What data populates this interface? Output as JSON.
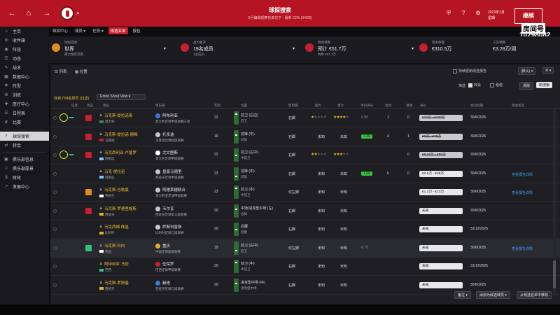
{
  "topbar": {
    "title": "球探搜索",
    "subtitle": "5月编辑观察名单位于 · 最新 22% (0/428)",
    "date_line1": "2023年1月",
    "date_line2": "星期",
    "continue_label": "继续",
    "badge_tag": "房间号",
    "badge_num": "10298082",
    "colors": {
      "bar": "#b51522"
    }
  },
  "sidebar": {
    "items": [
      {
        "icon": "⌂",
        "label": "主页"
      },
      {
        "icon": "✉",
        "label": "收件箱"
      },
      {
        "icon": "◉",
        "label": "阵容"
      },
      {
        "icon": "☰",
        "label": "动态"
      },
      {
        "icon": "✎",
        "label": "战术"
      },
      {
        "icon": "▦",
        "label": "数据中心"
      },
      {
        "icon": "⚑",
        "label": "阵型"
      },
      {
        "icon": "⚙",
        "label": "训练"
      },
      {
        "icon": "✚",
        "label": "医疗中心"
      },
      {
        "icon": "☷",
        "label": "日程表"
      },
      {
        "icon": "♛",
        "label": "比赛"
      },
      {
        "icon": "⌕",
        "label": "球探搜索",
        "active": true
      },
      {
        "icon": "⇄",
        "label": "转会"
      },
      {
        "icon": "▣",
        "label": "俱乐部信息"
      },
      {
        "icon": "⚐",
        "label": "俱乐部愿景"
      },
      {
        "icon": "$",
        "label": "财政"
      },
      {
        "icon": "↗",
        "label": "发展中心"
      }
    ]
  },
  "tabs": [
    {
      "label": "球探中心"
    },
    {
      "label": "球员 ▾"
    },
    {
      "label": "任务 ▾"
    },
    {
      "label": "候选名单",
      "active": true
    },
    {
      "label": "报告"
    }
  ],
  "summary": [
    {
      "label": "球探范围",
      "value": "世界",
      "sub": "最大搜索范围",
      "color": "#e08a20"
    },
    {
      "label": "战力要求",
      "value": "19名成员",
      "sub": "1名成员",
      "color": "#c8202e"
    },
    {
      "label": "转会预算",
      "value": "预计 €51.7万",
      "sub": "剩余 €51.7万",
      "color": "#c8202e"
    },
    {
      "label": "转会余额",
      "value": "€310.5万",
      "sub": "",
      "color": "#c8202e"
    },
    {
      "label": "工资预算",
      "value": "€3.28万/周",
      "sub": "",
      "color": "#c8202e"
    }
  ],
  "panel": {
    "view_list": "列表",
    "view_pos": "位置",
    "keep_report": "持续更新候选报告",
    "default_dd": "(默认) ▾",
    "filter_label": "筛选",
    "chk_1": "转会",
    "chk_2": "租借",
    "clear_btn": "清除",
    "new_btn": "新搜索",
    "found_text": "找到了84名球员 (过滤)",
    "scout_view": "Emon Scout View ▾"
  },
  "columns": {
    "info": "信息",
    "status": "状态",
    "name": "球员",
    "club": "俱乐部",
    "age": "年龄",
    "position": "位置",
    "foot": "惯用脚",
    "ability": "能力",
    "potential": "潜力",
    "rating": "平均评分",
    "apps": "出场",
    "goals": "进球",
    "assists": "助攻",
    "value": "身价",
    "contract": "合同到期",
    "agent": "转会状态"
  },
  "rows": [
    {
      "ring": true,
      "status_color": "#c8202e",
      "name": "马克斯·提拉诺奥",
      "nat": "意大利",
      "flag": "#2e8b57",
      "club": "阿布利亚",
      "league": "意大利足球甲级联赛三组",
      "club_color": "#3a7bd5",
      "age": "22",
      "pos": "前卫 (右边)",
      "pos_sub": "后卫",
      "foot": "右脚",
      "ability": 1,
      "potential": 4,
      "rating": "6.95",
      "rating_green": false,
      "apps": "1",
      "goals": "0",
      "value": "€10万 - €120万",
      "strike": true,
      "contract": "30/6/2026",
      "link": ""
    },
    {
      "ring": false,
      "status_color": "#c8202e",
      "name": "马克斯·提拉诺·德梅",
      "nat": "马耳他",
      "flag": "#c8202e",
      "club": "托多迪",
      "league": "马耳他足球超级联赛",
      "club_color": "#c8c8cc",
      "age": "19",
      "pos": "前锋 (中)",
      "pos_sub": "前锋",
      "foot": "右脚",
      "ability": 0,
      "potential": 0,
      "rating": "7.30",
      "rating_green": true,
      "apps": "4",
      "goals": "1",
      "value": "€0万 - €30万",
      "strike": true,
      "contract": "30/6/2026",
      "link": ""
    },
    {
      "ring": true,
      "status_color": "#c8202e",
      "name": "马克西利亚·卢塞罗",
      "nat": "阿根廷",
      "flag": "#7ec8ff",
      "club": "尤文图斯",
      "league": "意大利足球甲级联赛",
      "club_color": "#ffffff",
      "age": "22",
      "pos": "前卫 (右中)",
      "pos_sub": "中前卫",
      "foot": "右脚",
      "ability": 2,
      "potential": 3,
      "rating": "",
      "rating_green": false,
      "apps": "",
      "goals": "0",
      "value": "€8.45万 - €85万",
      "strike": true,
      "contract": "30/6/2026",
      "link": ""
    },
    {
      "ring": false,
      "status_color": "",
      "name": "马克·提拉诺",
      "nat": "阿根廷",
      "flag": "#7ec8ff",
      "club": "皇家马德里",
      "league": "西班牙足球甲级联赛",
      "club_color": "#c8c8cc",
      "age": "23",
      "pos": "前锋 (中)",
      "pos_sub": "前锋",
      "foot": "右脚",
      "ability": 0,
      "potential": 0,
      "rating": "7.20",
      "rating_green": true,
      "apps": "6",
      "goals": "0",
      "value": "€2.6万 - €28万",
      "strike": false,
      "contract": "30/6/2025",
      "link": "查看报告详情"
    },
    {
      "ring": false,
      "status_color": "#e08a20",
      "name": "马克斯·巴勒莫",
      "nat": "英格兰",
      "flag": "#ffffff",
      "club": "阿德莱德联合",
      "league": "澳大利亚足球甲级联赛",
      "club_color": "#c8c8cc",
      "age": "23",
      "pos": "前卫 (中)",
      "pos_sub": "中前卫",
      "foot": "仅左脚",
      "ability": 0,
      "potential": 0,
      "rating": "",
      "rating_green": false,
      "apps": "",
      "goals": "",
      "value": "€1.2万 - €13万",
      "strike": false,
      "contract": "30/6/2025",
      "link": "查看报告详情"
    },
    {
      "ring": false,
      "status_color": "#c8202e",
      "name": "马克斯·罗德里格斯",
      "nat": "西班牙",
      "flag": "#e0b020",
      "club": "韦尔瓦",
      "league": "西班牙足球第三级联赛",
      "club_color": "#c8c8cc",
      "age": "20",
      "pos": "中场/进攻型中场 (左)",
      "pos_sub": "边锋",
      "foot": "右脚",
      "ability": 0,
      "potential": 0,
      "rating": "",
      "rating_green": false,
      "apps": "",
      "goals": "",
      "value": "未知",
      "strike": false,
      "contract": "30/6/2025",
      "link": ""
    },
    {
      "ring": false,
      "status_color": "",
      "name": "马克西姆·佩洛",
      "nat": "比利时",
      "flag": "#e0b020",
      "club": "萨斯科普斯",
      "league": "比利时足球乙级联赛",
      "club_color": "#c8c8cc",
      "age": "20",
      "pos": "后腰",
      "pos_sub": "后腰",
      "foot": "右脚",
      "ability": 0,
      "potential": 0,
      "rating": "",
      "rating_green": false,
      "apps": "",
      "goals": "",
      "value": "未知",
      "strike": false,
      "contract": "31/12/2025",
      "link": ""
    },
    {
      "ring": false,
      "status_color": "#2ec27e",
      "name": "马克斯·科内",
      "nat": "英国",
      "flag": "#ffffff",
      "club": "重庆",
      "league": "中国足球超级联赛",
      "club_color": "#e0b020",
      "age": "19",
      "pos": "前卫 (右中)",
      "pos_sub": "后卫",
      "foot": "仅左脚",
      "ability": 0,
      "potential": 0,
      "rating": "6.75",
      "rating_green": false,
      "apps": "",
      "goals": "",
      "value": "未知",
      "strike": false,
      "contract": "30/6/2025",
      "link": "查看报告详情",
      "hl": true
    },
    {
      "ring": false,
      "status_color": "",
      "name": "阿特利亚·马佐",
      "nat": "巴西",
      "flag": "#2ec27e",
      "club": "圣保罗",
      "league": "巴西足球甲级联赛",
      "club_color": "#c8202e",
      "age": "20",
      "pos": "前卫 (中)",
      "pos_sub": "中前卫",
      "foot": "右脚",
      "ability": 0,
      "potential": 0,
      "rating": "",
      "rating_green": false,
      "apps": "",
      "goals": "",
      "value": "未知",
      "strike": false,
      "contract": "31/12/2025",
      "link": ""
    },
    {
      "ring": false,
      "status_color": "",
      "name": "马克斯·罗斯曼",
      "nat": "西班牙",
      "flag": "#e0b020",
      "club": "赫塔",
      "league": "西班牙足球乙级联赛",
      "club_color": "#3a7bd5",
      "age": "20",
      "pos": "进攻型中场 (中)",
      "pos_sub": "进攻型中场",
      "foot": "右脚",
      "ability": 0,
      "potential": 0,
      "rating": "",
      "rating_green": false,
      "apps": "",
      "goals": "",
      "value": "未知",
      "strike": false,
      "contract": "30/6/2025",
      "link": ""
    }
  ],
  "unknown_label": "未知",
  "footer": {
    "btn_1": "备注 ▾",
    "btn_2": "添加为候选球员 ▾",
    "btn_3": "从候选名单中移除"
  }
}
